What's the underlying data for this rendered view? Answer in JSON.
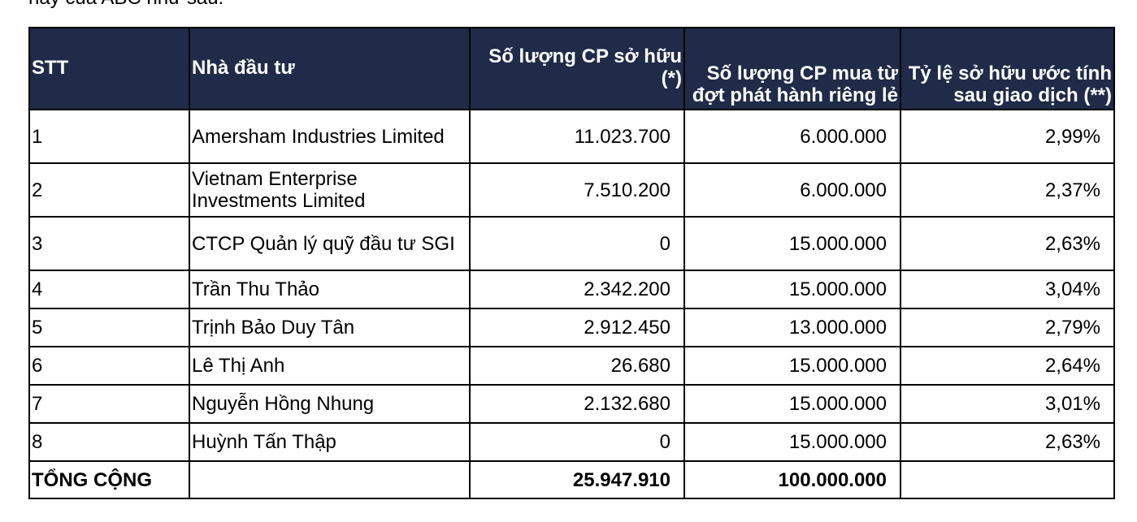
{
  "intro": "này của ABC như sau:",
  "table": {
    "headers": [
      "STT",
      "Nhà đầu tư",
      "Số lượng CP sở hữu (*)",
      "Số lượng CP mua từ đợt phát hành riêng lẻ",
      "Tỷ lệ sở hữu ước tính sau giao dịch (**)"
    ],
    "rows": [
      [
        "1",
        "Amersham Industries Limited",
        "11.023.700",
        "6.000.000",
        "2,99%"
      ],
      [
        "2",
        "Vietnam Enterprise Investments Limited",
        "7.510.200",
        "6.000.000",
        "2,37%"
      ],
      [
        "3",
        "CTCP Quản lý quỹ đầu tư SGI",
        "0",
        "15.000.000",
        "2,63%"
      ],
      [
        "4",
        "Trần Thu Thảo",
        "2.342.200",
        "15.000.000",
        "3,04%"
      ],
      [
        "5",
        "Trịnh Bảo Duy Tân",
        "2.912.450",
        "13.000.000",
        "2,79%"
      ],
      [
        "6",
        "Lê Thị Anh",
        "26.680",
        "15.000.000",
        "2,64%"
      ],
      [
        "7",
        "Nguyễn Hồng Nhung",
        "2.132.680",
        "15.000.000",
        "3,01%"
      ],
      [
        "8",
        "Huỳnh Tấn Thập",
        "0",
        "15.000.000",
        "2,63%"
      ]
    ],
    "total": {
      "label": "TỔNG CỘNG",
      "shares_held": "25.947.910",
      "shares_bought": "100.000.000"
    }
  }
}
